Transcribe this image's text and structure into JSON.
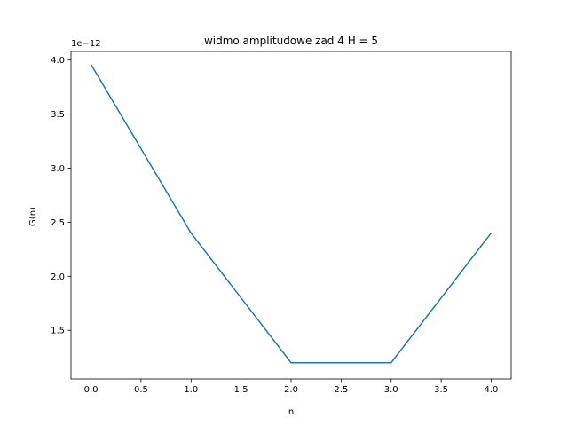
{
  "chart_data": {
    "type": "line",
    "title": "widmo amplitudowe zad 4 H = 5",
    "xlabel": "n",
    "ylabel": "G(n)",
    "y_offset_label": "1e−12",
    "xlim": [
      -0.2,
      4.2
    ],
    "ylim": [
      1.05,
      4.08
    ],
    "grid": false,
    "x_ticks": [
      0.0,
      0.5,
      1.0,
      1.5,
      2.0,
      2.5,
      3.0,
      3.5,
      4.0
    ],
    "x_tick_labels": [
      "0.0",
      "0.5",
      "1.0",
      "1.5",
      "2.0",
      "2.5",
      "3.0",
      "3.5",
      "4.0"
    ],
    "y_ticks": [
      1.5,
      2.0,
      2.5,
      3.0,
      3.5,
      4.0
    ],
    "y_tick_labels": [
      "1.5",
      "2.0",
      "2.5",
      "3.0",
      "3.5",
      "4.0"
    ],
    "series": [
      {
        "color": "#1f77b4",
        "x": [
          0,
          1,
          2,
          3,
          4
        ],
        "y": [
          3.96,
          2.4,
          1.2,
          1.2,
          2.4
        ]
      }
    ]
  }
}
